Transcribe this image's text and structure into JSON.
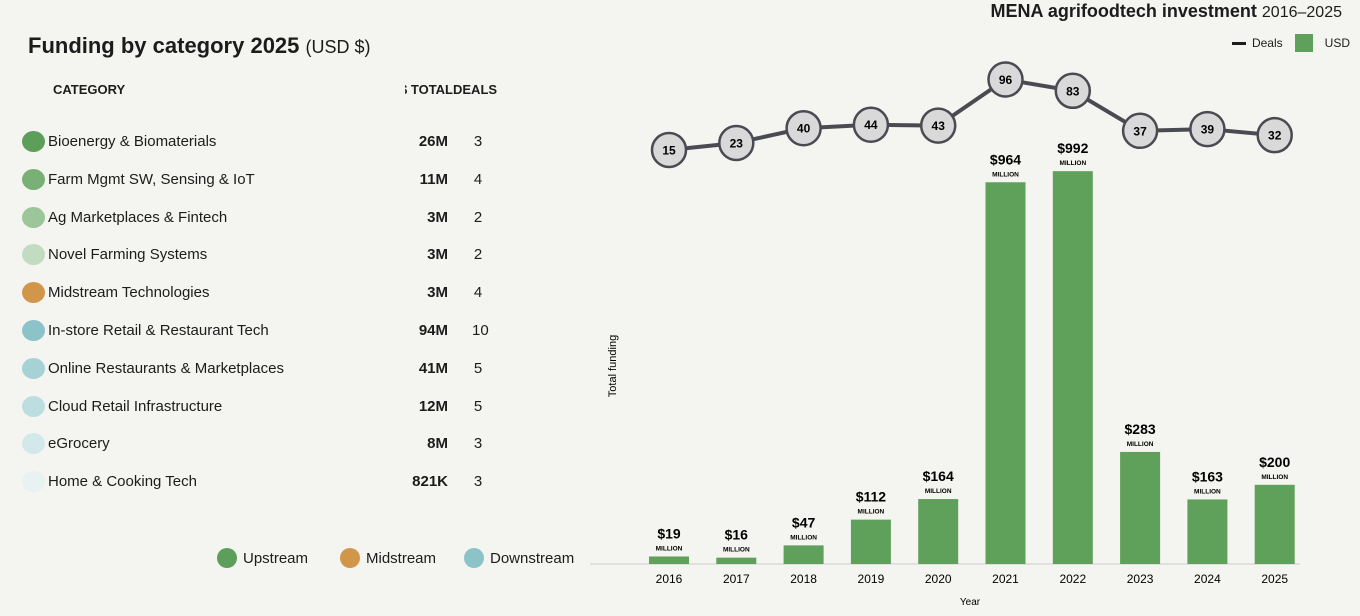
{
  "left": {
    "title": "Funding by category 2025",
    "title_unit": "(USD $)",
    "headers": {
      "category": "CATEGORY",
      "total": "TOTAL $",
      "deals": "DEALS"
    },
    "rows": [
      {
        "label": "Bioenergy & Biomaterials",
        "total": "26M",
        "deals": "3",
        "color": "#5c9e5a"
      },
      {
        "label": "Farm Mgmt SW, Sensing & IoT",
        "total": "11M",
        "deals": "4",
        "color": "#79b076"
      },
      {
        "label": "Ag Marketplaces & Fintech",
        "total": "3M",
        "deals": "2",
        "color": "#9cc69a"
      },
      {
        "label": "Novel Farming Systems",
        "total": "3M",
        "deals": "2",
        "color": "#c2dcc0"
      },
      {
        "label": "Midstream Technologies",
        "total": "3M",
        "deals": "4",
        "color": "#d2964a"
      },
      {
        "label": "In-store Retail & Restaurant Tech",
        "total": "94M",
        "deals": "10",
        "color": "#8cc3c9"
      },
      {
        "label": "Online Restaurants & Marketplaces",
        "total": "41M",
        "deals": "5",
        "color": "#a6d2d5"
      },
      {
        "label": "Cloud Retail Infrastructure",
        "total": "12M",
        "deals": "5",
        "color": "#bcdee0"
      },
      {
        "label": "eGrocery",
        "total": "8M",
        "deals": "3",
        "color": "#d3e8ea"
      },
      {
        "label": "Home & Cooking Tech",
        "total": "821K",
        "deals": "3",
        "color": "#e8f2f2"
      }
    ],
    "legend": [
      {
        "label": "Upstream",
        "color": "#5c9e5a"
      },
      {
        "label": "Midstream",
        "color": "#d2964a"
      },
      {
        "label": "Downstream",
        "color": "#8cc3c9"
      }
    ]
  },
  "chart_data": {
    "type": "bar",
    "title": "MENA agrifoodtech investment",
    "subtitle": "2016–2025",
    "xlabel": "Year",
    "ylabel": "Total funding",
    "legend": {
      "deals": "Deals",
      "usd": "USD"
    },
    "bar_color": "#5fa05a",
    "categories": [
      "2016",
      "2017",
      "2018",
      "2019",
      "2020",
      "2021",
      "2022",
      "2023",
      "2024",
      "2025"
    ],
    "series": [
      {
        "name": "USD",
        "unit": "MILLION",
        "values": [
          19,
          16,
          47,
          112,
          164,
          964,
          992,
          283,
          163,
          200
        ],
        "labels": [
          "$19",
          "$16",
          "$47",
          "$112",
          "$164",
          "$964",
          "$992",
          "$283",
          "$163",
          "$200"
        ]
      },
      {
        "name": "Deals",
        "type": "line",
        "values": [
          15,
          23,
          40,
          44,
          43,
          96,
          83,
          37,
          39,
          32
        ]
      }
    ]
  }
}
